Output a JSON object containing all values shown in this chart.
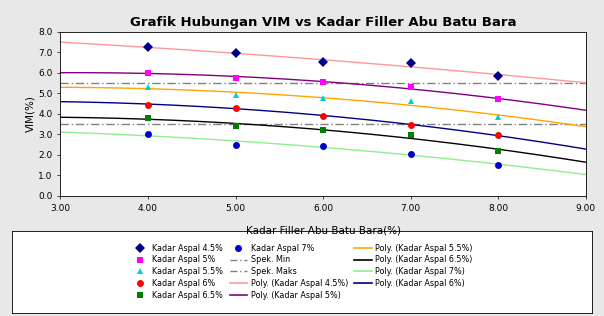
{
  "title": "Grafik Hubungan VIM vs Kadar Filler Abu Batu Bara",
  "xlabel": "Kadar Filler Abu Batu Bara(%)",
  "ylabel": "VIM(%)",
  "xlim": [
    3.0,
    9.0
  ],
  "ylim": [
    0.0,
    8.0
  ],
  "xticks": [
    3.0,
    4.0,
    5.0,
    6.0,
    7.0,
    8.0,
    9.0
  ],
  "yticks": [
    0.0,
    1.0,
    2.0,
    3.0,
    4.0,
    5.0,
    6.0,
    7.0,
    8.0
  ],
  "x": [
    4,
    5,
    6,
    7,
    8
  ],
  "series_data": {
    "4.5%": [
      7.25,
      6.95,
      6.5,
      6.45,
      5.85
    ],
    "5%": [
      6.0,
      5.75,
      5.55,
      5.3,
      4.7
    ],
    "5.5%": [
      5.3,
      4.9,
      4.75,
      4.6,
      3.85
    ],
    "6%": [
      4.45,
      4.3,
      3.9,
      3.45,
      2.95
    ],
    "6.5%": [
      3.8,
      3.4,
      3.2,
      2.95,
      2.2
    ],
    "7%": [
      3.0,
      2.5,
      2.45,
      2.05,
      1.5
    ]
  },
  "marker_colors": {
    "4.5%": "#00008B",
    "5%": "#FF00FF",
    "5.5%": "#00CED1",
    "6%": "#FF0000",
    "6.5%": "#008000",
    "7%": "#0000CD"
  },
  "marker_shapes": {
    "4.5%": "D",
    "5%": "s",
    "5.5%": "^",
    "6%": "o",
    "6.5%": "s",
    "7%": "o"
  },
  "poly_colors": {
    "4.5%": "#FF9999",
    "5%": "#800080",
    "5.5%": "#FFA500",
    "6%": "#000080",
    "6.5%": "#000000",
    "7%": "#90EE90"
  },
  "spek_min": 3.5,
  "spek_maks": 5.5,
  "spek_color": "#808080",
  "bg_color": "#FFFFFF",
  "outer_bg": "#E8E8E8"
}
